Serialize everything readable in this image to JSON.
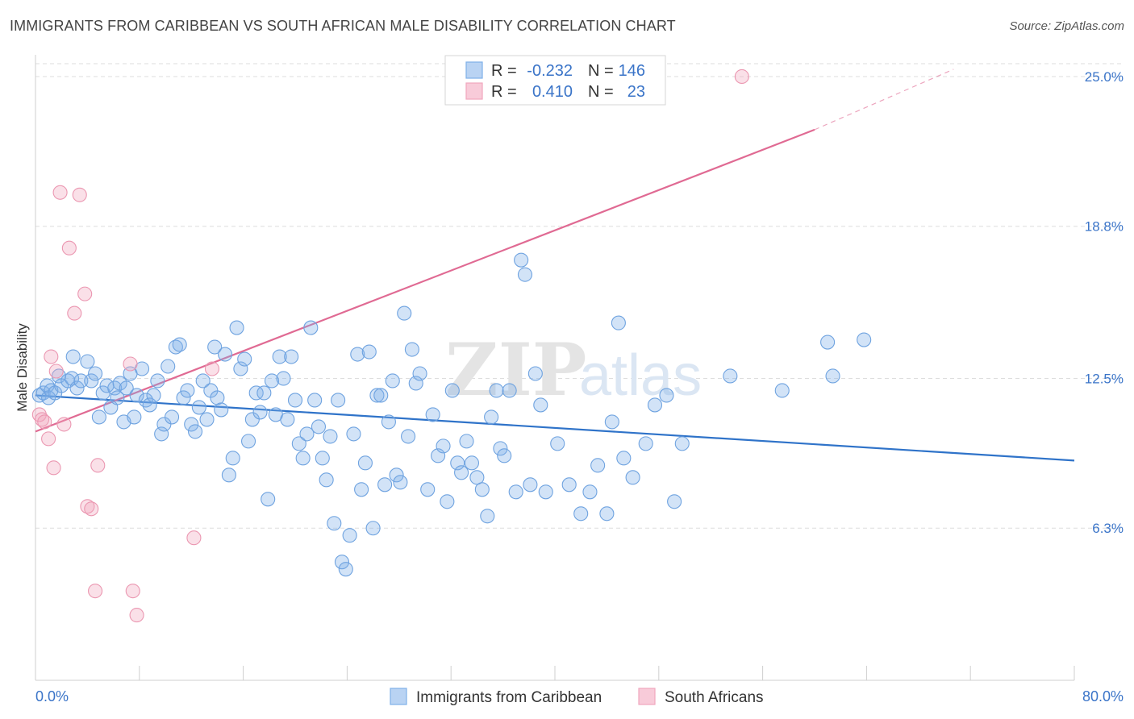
{
  "header": {
    "title": "IMMIGRANTS FROM CARIBBEAN VS SOUTH AFRICAN MALE DISABILITY CORRELATION CHART",
    "source": "Source: ZipAtlas.com"
  },
  "colors": {
    "blue": "#7fb0e8",
    "blue_line": "#2f73c9",
    "pink": "#f1a7be",
    "pink_line": "#e06a93",
    "grid": "#dedede",
    "tick_text": "#3a74c8"
  },
  "watermark": {
    "zip": "ZIP",
    "atlas": "atlas"
  },
  "chart_data": {
    "type": "scatter",
    "title": "IMMIGRANTS FROM CARIBBEAN VS SOUTH AFRICAN MALE DISABILITY CORRELATION CHART",
    "xlabel": "",
    "ylabel": "Male Disability",
    "xlim": [
      0,
      80
    ],
    "ylim": [
      0,
      25.9
    ],
    "x_tick_labels": [
      "0.0%",
      "80.0%"
    ],
    "y_ticks": [
      6.3,
      12.5,
      18.8,
      25.0
    ],
    "y_tick_labels": [
      "6.3%",
      "12.5%",
      "18.8%",
      "25.0%"
    ],
    "grid": "horizontal dashed",
    "legend": {
      "placement": "top-center",
      "rows": [
        {
          "r_label": "R =",
          "r": "-0.232",
          "n_label": "N =",
          "n": "146"
        },
        {
          "r_label": "R =",
          "r": "0.410",
          "n_label": "N =",
          "n": "23"
        }
      ]
    },
    "series": [
      {
        "name": "Immigrants from Caribbean",
        "color": "#7fb0e8",
        "trend": {
          "x": [
            0,
            80
          ],
          "y": [
            11.8,
            9.1
          ]
        },
        "points": [
          [
            0.3,
            11.8
          ],
          [
            0.6,
            11.9
          ],
          [
            0.9,
            12.2
          ],
          [
            1.0,
            11.7
          ],
          [
            1.2,
            12.0
          ],
          [
            1.5,
            11.9
          ],
          [
            1.8,
            12.6
          ],
          [
            2.0,
            12.2
          ],
          [
            2.5,
            12.4
          ],
          [
            2.8,
            12.5
          ],
          [
            2.9,
            13.4
          ],
          [
            3.2,
            12.1
          ],
          [
            3.5,
            12.4
          ],
          [
            4.0,
            13.2
          ],
          [
            4.3,
            12.4
          ],
          [
            4.6,
            12.7
          ],
          [
            4.9,
            10.9
          ],
          [
            5.2,
            11.9
          ],
          [
            5.5,
            12.2
          ],
          [
            5.8,
            11.3
          ],
          [
            6.1,
            12.1
          ],
          [
            6.3,
            11.7
          ],
          [
            6.5,
            12.3
          ],
          [
            6.8,
            10.7
          ],
          [
            7.0,
            12.1
          ],
          [
            7.3,
            12.7
          ],
          [
            7.6,
            10.9
          ],
          [
            7.8,
            11.8
          ],
          [
            8.2,
            12.9
          ],
          [
            8.5,
            11.6
          ],
          [
            8.8,
            11.4
          ],
          [
            9.1,
            11.8
          ],
          [
            9.4,
            12.4
          ],
          [
            9.7,
            10.2
          ],
          [
            9.9,
            10.6
          ],
          [
            10.2,
            13.0
          ],
          [
            10.5,
            10.9
          ],
          [
            10.8,
            13.8
          ],
          [
            11.1,
            13.9
          ],
          [
            11.4,
            11.7
          ],
          [
            11.7,
            12.0
          ],
          [
            12.0,
            10.6
          ],
          [
            12.3,
            10.3
          ],
          [
            12.6,
            11.3
          ],
          [
            12.9,
            12.4
          ],
          [
            13.2,
            10.8
          ],
          [
            13.5,
            12.0
          ],
          [
            13.8,
            13.8
          ],
          [
            14.0,
            11.7
          ],
          [
            14.3,
            11.2
          ],
          [
            14.6,
            13.5
          ],
          [
            14.9,
            8.5
          ],
          [
            15.2,
            9.2
          ],
          [
            15.5,
            14.6
          ],
          [
            15.8,
            12.9
          ],
          [
            16.1,
            13.3
          ],
          [
            16.4,
            9.9
          ],
          [
            16.7,
            10.8
          ],
          [
            17.0,
            11.9
          ],
          [
            17.3,
            11.1
          ],
          [
            17.6,
            11.9
          ],
          [
            17.9,
            7.5
          ],
          [
            18.2,
            12.4
          ],
          [
            18.5,
            11.0
          ],
          [
            18.8,
            13.4
          ],
          [
            19.1,
            12.5
          ],
          [
            19.4,
            10.8
          ],
          [
            19.7,
            13.4
          ],
          [
            20.0,
            11.6
          ],
          [
            20.3,
            9.8
          ],
          [
            20.6,
            9.2
          ],
          [
            20.9,
            10.2
          ],
          [
            21.2,
            14.6
          ],
          [
            21.5,
            11.6
          ],
          [
            21.8,
            10.5
          ],
          [
            22.1,
            9.2
          ],
          [
            22.4,
            8.3
          ],
          [
            22.7,
            10.1
          ],
          [
            23.0,
            6.5
          ],
          [
            23.3,
            11.6
          ],
          [
            23.6,
            4.9
          ],
          [
            23.9,
            4.6
          ],
          [
            24.2,
            6.0
          ],
          [
            24.5,
            10.2
          ],
          [
            24.8,
            13.5
          ],
          [
            25.1,
            7.9
          ],
          [
            25.4,
            9.0
          ],
          [
            25.7,
            13.6
          ],
          [
            26.0,
            6.3
          ],
          [
            26.3,
            11.8
          ],
          [
            26.6,
            11.8
          ],
          [
            26.9,
            8.1
          ],
          [
            27.2,
            10.7
          ],
          [
            27.5,
            12.4
          ],
          [
            27.8,
            8.5
          ],
          [
            28.1,
            8.2
          ],
          [
            28.4,
            15.2
          ],
          [
            28.7,
            10.1
          ],
          [
            29.0,
            13.7
          ],
          [
            29.3,
            12.3
          ],
          [
            29.6,
            12.7
          ],
          [
            30.2,
            7.9
          ],
          [
            30.6,
            11.0
          ],
          [
            31.0,
            9.3
          ],
          [
            31.4,
            9.7
          ],
          [
            31.7,
            7.4
          ],
          [
            32.1,
            12.0
          ],
          [
            32.5,
            9.0
          ],
          [
            32.8,
            8.6
          ],
          [
            33.2,
            9.9
          ],
          [
            33.6,
            9.0
          ],
          [
            34.0,
            8.4
          ],
          [
            34.4,
            7.9
          ],
          [
            34.8,
            6.8
          ],
          [
            35.1,
            10.9
          ],
          [
            35.5,
            12.0
          ],
          [
            35.8,
            9.6
          ],
          [
            36.1,
            9.3
          ],
          [
            36.5,
            12.0
          ],
          [
            37.0,
            7.8
          ],
          [
            37.4,
            17.4
          ],
          [
            37.7,
            16.8
          ],
          [
            38.1,
            8.1
          ],
          [
            38.5,
            12.7
          ],
          [
            38.9,
            11.4
          ],
          [
            39.3,
            7.8
          ],
          [
            40.2,
            9.8
          ],
          [
            41.1,
            8.1
          ],
          [
            42.0,
            6.9
          ],
          [
            42.7,
            7.8
          ],
          [
            43.3,
            8.9
          ],
          [
            44.0,
            6.9
          ],
          [
            44.4,
            10.7
          ],
          [
            44.9,
            14.8
          ],
          [
            45.3,
            9.2
          ],
          [
            46.0,
            8.4
          ],
          [
            47.0,
            9.8
          ],
          [
            47.7,
            11.4
          ],
          [
            48.6,
            11.8
          ],
          [
            49.2,
            7.4
          ],
          [
            49.8,
            9.8
          ],
          [
            53.5,
            12.6
          ],
          [
            57.5,
            12.0
          ],
          [
            61.0,
            14.0
          ],
          [
            61.4,
            12.6
          ],
          [
            63.8,
            14.1
          ]
        ]
      },
      {
        "name": "South Africans",
        "color": "#f1a7be",
        "trend": {
          "x": [
            0,
            60
          ],
          "y": [
            10.3,
            22.8
          ]
        },
        "trend_dashed": {
          "x": [
            60,
            70.7
          ],
          "y": [
            22.8,
            25.3
          ]
        },
        "points": [
          [
            0.3,
            11.0
          ],
          [
            0.5,
            10.8
          ],
          [
            0.7,
            10.7
          ],
          [
            1.0,
            10.0
          ],
          [
            1.2,
            13.4
          ],
          [
            1.4,
            8.8
          ],
          [
            1.6,
            12.8
          ],
          [
            1.9,
            20.2
          ],
          [
            2.2,
            10.6
          ],
          [
            2.6,
            17.9
          ],
          [
            3.0,
            15.2
          ],
          [
            3.4,
            20.1
          ],
          [
            3.8,
            16.0
          ],
          [
            4.0,
            7.2
          ],
          [
            4.3,
            7.1
          ],
          [
            4.6,
            3.7
          ],
          [
            4.8,
            8.9
          ],
          [
            7.3,
            13.1
          ],
          [
            7.5,
            3.7
          ],
          [
            7.8,
            2.7
          ],
          [
            12.2,
            5.9
          ],
          [
            13.6,
            12.9
          ],
          [
            54.4,
            25.0
          ]
        ]
      }
    ]
  }
}
